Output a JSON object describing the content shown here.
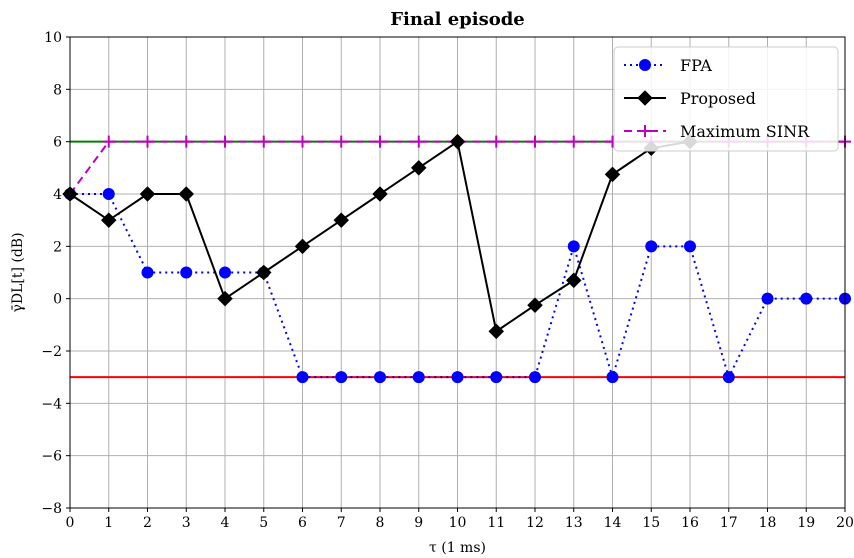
{
  "chart_data": {
    "type": "line",
    "title": "Final episode",
    "xlabel": "τ (1 ms)",
    "ylabel": "γ̄DL[t] (dB)",
    "xlim": [
      0,
      20
    ],
    "ylim": [
      -8,
      10
    ],
    "xticks": [
      0,
      1,
      2,
      3,
      4,
      5,
      6,
      7,
      8,
      9,
      10,
      11,
      12,
      13,
      14,
      15,
      16,
      17,
      18,
      19,
      20
    ],
    "yticks": [
      -8,
      -6,
      -4,
      -2,
      0,
      2,
      4,
      6,
      8,
      10
    ],
    "ytick_labels": [
      "−8",
      "−6",
      "−4",
      "−2",
      "0",
      "2",
      "4",
      "6",
      "8",
      "10"
    ],
    "grid": true,
    "legend_position": "top-right",
    "series": [
      {
        "name": "FPA",
        "color": "#0000ff",
        "line_style": "dotted",
        "marker": "circle",
        "x": [
          0,
          1,
          2,
          3,
          4,
          5,
          6,
          7,
          8,
          9,
          10,
          11,
          12,
          13,
          14,
          15,
          16,
          17,
          18,
          19,
          20
        ],
        "y": [
          4,
          4,
          1,
          1,
          1,
          1,
          -3,
          -3,
          -3,
          -3,
          -3,
          -3,
          -3,
          2,
          -3,
          2,
          2,
          -3,
          0,
          0,
          0
        ]
      },
      {
        "name": "Proposed",
        "color": "#000000",
        "line_style": "solid",
        "marker": "diamond",
        "x": [
          0,
          1,
          2,
          3,
          4,
          5,
          6,
          7,
          8,
          9,
          10,
          11,
          12,
          13,
          14,
          15,
          16
        ],
        "y": [
          4,
          3,
          4,
          4,
          0,
          1,
          2,
          3,
          4,
          5,
          6,
          -1.25,
          -0.25,
          0.7,
          4.75,
          5.75,
          6
        ]
      },
      {
        "name": "Maximum SINR",
        "color": "#bf00bf",
        "line_style": "dashed",
        "marker": "plus",
        "x": [
          0,
          1,
          2,
          3,
          4,
          5,
          6,
          7,
          8,
          9,
          10,
          11,
          12,
          13,
          14,
          15,
          16,
          17,
          18,
          19,
          20
        ],
        "y": [
          4,
          6,
          6,
          6,
          6,
          6,
          6,
          6,
          6,
          6,
          6,
          6,
          6,
          6,
          6,
          6,
          6,
          6,
          6,
          6,
          6
        ]
      }
    ],
    "reference_lines": [
      {
        "y": 6,
        "color": "#008000"
      },
      {
        "y": -3,
        "color": "#ff0000"
      }
    ]
  }
}
